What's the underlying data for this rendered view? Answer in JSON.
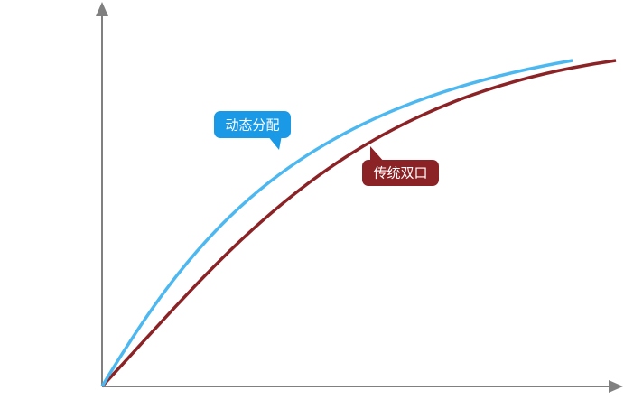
{
  "labels": {
    "dynamic": "动态分配",
    "traditional": "传统双口"
  }
}
